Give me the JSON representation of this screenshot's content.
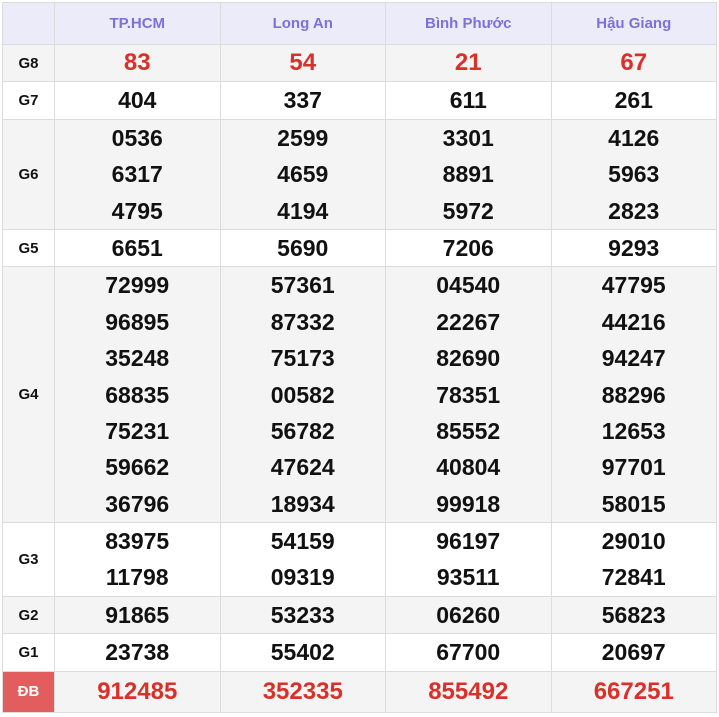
{
  "provinces": [
    "TP.HCM",
    "Long An",
    "Bình Phước",
    "Hậu Giang"
  ],
  "prizes": [
    {
      "label": "G8",
      "highlight": true,
      "values": [
        [
          "83"
        ],
        [
          "54"
        ],
        [
          "21"
        ],
        [
          "67"
        ]
      ]
    },
    {
      "label": "G7",
      "values": [
        [
          "404"
        ],
        [
          "337"
        ],
        [
          "611"
        ],
        [
          "261"
        ]
      ]
    },
    {
      "label": "G6",
      "values": [
        [
          "0536",
          "6317",
          "4795"
        ],
        [
          "2599",
          "4659",
          "4194"
        ],
        [
          "3301",
          "8891",
          "5972"
        ],
        [
          "4126",
          "5963",
          "2823"
        ]
      ]
    },
    {
      "label": "G5",
      "values": [
        [
          "6651"
        ],
        [
          "5690"
        ],
        [
          "7206"
        ],
        [
          "9293"
        ]
      ]
    },
    {
      "label": "G4",
      "values": [
        [
          "72999",
          "96895",
          "35248",
          "68835",
          "75231",
          "59662",
          "36796"
        ],
        [
          "57361",
          "87332",
          "75173",
          "00582",
          "56782",
          "47624",
          "18934"
        ],
        [
          "04540",
          "22267",
          "82690",
          "78351",
          "85552",
          "40804",
          "99918"
        ],
        [
          "47795",
          "44216",
          "94247",
          "88296",
          "12653",
          "97701",
          "58015"
        ]
      ]
    },
    {
      "label": "G3",
      "values": [
        [
          "83975",
          "11798"
        ],
        [
          "54159",
          "09319"
        ],
        [
          "96197",
          "93511"
        ],
        [
          "29010",
          "72841"
        ]
      ]
    },
    {
      "label": "G2",
      "values": [
        [
          "91865"
        ],
        [
          "53233"
        ],
        [
          "06260"
        ],
        [
          "56823"
        ]
      ]
    },
    {
      "label": "G1",
      "values": [
        [
          "23738"
        ],
        [
          "55402"
        ],
        [
          "67700"
        ],
        [
          "20697"
        ]
      ]
    },
    {
      "label": "ĐB",
      "highlight": true,
      "special": true,
      "values": [
        [
          "912485"
        ],
        [
          "352335"
        ],
        [
          "855492"
        ],
        [
          "667251"
        ]
      ]
    }
  ],
  "colors": {
    "header_bg": "#ebebfa",
    "header_text": "#7d70d8",
    "highlight": "#d9302a",
    "special_label_bg": "#e25d5d"
  }
}
